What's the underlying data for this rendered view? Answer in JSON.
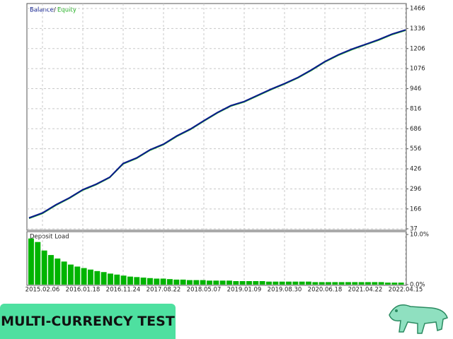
{
  "chart_data": [
    {
      "type": "line",
      "legend_separator": "/",
      "categories": [
        null,
        "2015.02.06",
        null,
        null,
        "2016.01.18",
        null,
        null,
        "2016.11.24",
        null,
        null,
        "2017.08.22",
        null,
        null,
        "2018.05.07",
        null,
        null,
        "2019.01.09",
        null,
        null,
        "2019.08.30",
        null,
        null,
        "2020.06.18",
        null,
        null,
        "2021.04.22",
        null,
        null,
        "2022.04.15"
      ],
      "series": [
        {
          "name": "Balance",
          "color": "#0a1a8c",
          "values": [
            108,
            140,
            193,
            238,
            291,
            327,
            372,
            461,
            497,
            550,
            586,
            640,
            684,
            738,
            791,
            836,
            863,
            903,
            943,
            979,
            1019,
            1068,
            1122,
            1166,
            1202,
            1233,
            1264,
            1300,
            1327
          ]
        },
        {
          "name": "Equity",
          "color": "#22b022",
          "values": [
            104,
            136,
            189,
            234,
            287,
            323,
            368,
            457,
            493,
            546,
            582,
            636,
            680,
            734,
            787,
            832,
            859,
            899,
            939,
            975,
            1015,
            1064,
            1118,
            1162,
            1198,
            1229,
            1260,
            1296,
            1323
          ]
        }
      ],
      "ylim": [
        37,
        1466
      ],
      "yticks": [
        37,
        166,
        296,
        426,
        556,
        686,
        816,
        946,
        1076,
        1206,
        1336,
        1466
      ],
      "grid": true
    },
    {
      "type": "bar",
      "title": "Deposit Load",
      "color": "#00b400",
      "values": [
        9.2,
        8.5,
        6.8,
        5.9,
        5.2,
        4.6,
        4.0,
        3.6,
        3.3,
        3.0,
        2.7,
        2.5,
        2.2,
        2.0,
        1.8,
        1.6,
        1.5,
        1.4,
        1.3,
        1.2,
        1.2,
        1.1,
        1.0,
        1.0,
        0.9,
        0.9,
        0.9,
        0.8,
        0.8,
        0.8,
        0.8,
        0.7,
        0.7,
        0.7,
        0.7,
        0.7,
        0.6,
        0.6,
        0.6,
        0.6,
        0.6,
        0.6,
        0.6,
        0.5,
        0.5,
        0.5,
        0.5,
        0.5,
        0.5,
        0.5,
        0.5,
        0.5,
        0.5,
        0.5,
        0.4,
        0.4,
        0.4
      ],
      "ylim": [
        0,
        10
      ],
      "yticks": [
        {
          "value": 10,
          "label": "10.0%"
        },
        {
          "value": 0,
          "label": "0.0%"
        }
      ]
    }
  ],
  "banner": {
    "text": "MULTI-CURRENCY TEST"
  }
}
